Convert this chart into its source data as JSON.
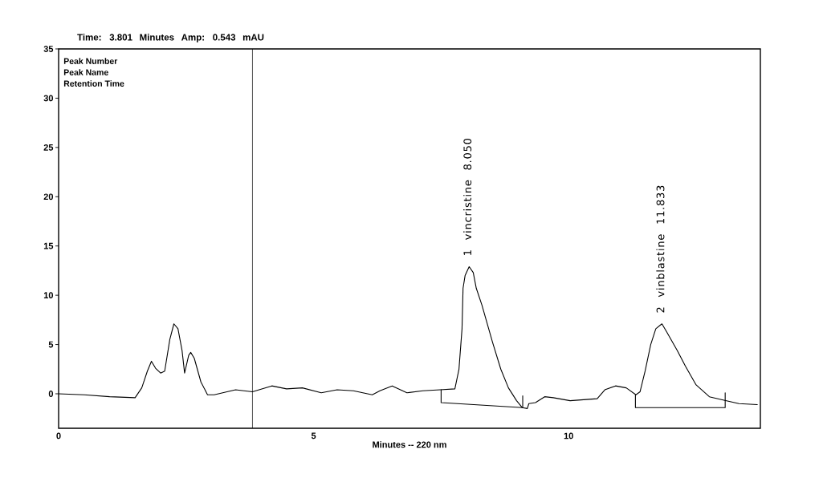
{
  "chart_data": {
    "type": "line",
    "title": "Time: 3.801 Minutes Amp: 0.543 mAU",
    "xlabel": "Minutes -- 220 nm",
    "annotations": [
      "Peak Number",
      "Peak Name",
      "Retention Time",
      {
        "text": "1 vincristine 8.050",
        "x": 8.05,
        "y": 12.9
      },
      {
        "text": "2 vinblastine 11.833",
        "x": 11.833,
        "y": 7.1
      }
    ],
    "series": [
      {
        "color": "#000000",
        "x": [
          0.0,
          0.5,
          1.0,
          1.5,
          1.63,
          1.74,
          1.82,
          1.9,
          2.0,
          2.08,
          2.18,
          2.26,
          2.34,
          2.42,
          2.47,
          2.55,
          2.59,
          2.66,
          2.79,
          2.92,
          3.05,
          3.47,
          3.8,
          4.18,
          4.47,
          4.78,
          5.15,
          5.46,
          5.78,
          6.15,
          6.3,
          6.54,
          6.83,
          7.14,
          7.48,
          7.77,
          7.85,
          7.91,
          7.93,
          7.97,
          8.05,
          8.13,
          8.19,
          8.3,
          8.51,
          8.67,
          8.82,
          8.98,
          9.09,
          9.19,
          9.22,
          9.35,
          9.53,
          9.7,
          10.03,
          10.56,
          10.71,
          10.92,
          11.13,
          11.32,
          11.4,
          11.5,
          11.61,
          11.71,
          11.83,
          11.92,
          12.13,
          12.29,
          12.5,
          12.76,
          13.08,
          13.34,
          13.7
        ],
        "values": [
          0.0,
          -0.1,
          -0.3,
          -0.4,
          0.6,
          2.3,
          3.3,
          2.6,
          2.1,
          2.3,
          5.5,
          7.1,
          6.6,
          4.4,
          2.1,
          3.9,
          4.2,
          3.6,
          1.2,
          -0.1,
          -0.1,
          0.4,
          0.2,
          0.8,
          0.5,
          0.6,
          0.1,
          0.4,
          0.3,
          -0.1,
          0.3,
          0.8,
          0.1,
          0.3,
          0.4,
          0.5,
          2.5,
          6.6,
          10.7,
          12.0,
          12.9,
          12.3,
          10.7,
          9.0,
          5.2,
          2.5,
          0.6,
          -0.7,
          -1.4,
          -1.5,
          -1.0,
          -0.9,
          -0.3,
          -0.4,
          -0.7,
          -0.5,
          0.4,
          0.8,
          0.6,
          -0.1,
          0.2,
          2.3,
          5.0,
          6.6,
          7.1,
          6.3,
          4.4,
          2.8,
          0.9,
          -0.3,
          -0.7,
          -1.0,
          -1.1
        ]
      },
      {
        "color": "#000000",
        "x": [
          7.5,
          7.5,
          9.1,
          9.1
        ],
        "values": [
          0.4,
          -0.9,
          -1.4,
          -0.2
        ]
      },
      {
        "color": "#000000",
        "x": [
          11.31,
          11.31,
          13.07,
          13.07
        ],
        "values": [
          -0.1,
          -1.4,
          -1.4,
          0.1
        ]
      }
    ],
    "xlim": [
      0,
      13.76
    ],
    "ylim": [
      -3.5,
      35
    ],
    "xticks": [
      0,
      5,
      10
    ],
    "yticks": [
      0,
      5,
      10,
      15,
      20,
      25,
      30,
      35
    ],
    "ref_lines": [
      {
        "axis": "x",
        "value": 3.801,
        "color": "#000000"
      }
    ],
    "marker": "none",
    "line_style": "solid"
  }
}
